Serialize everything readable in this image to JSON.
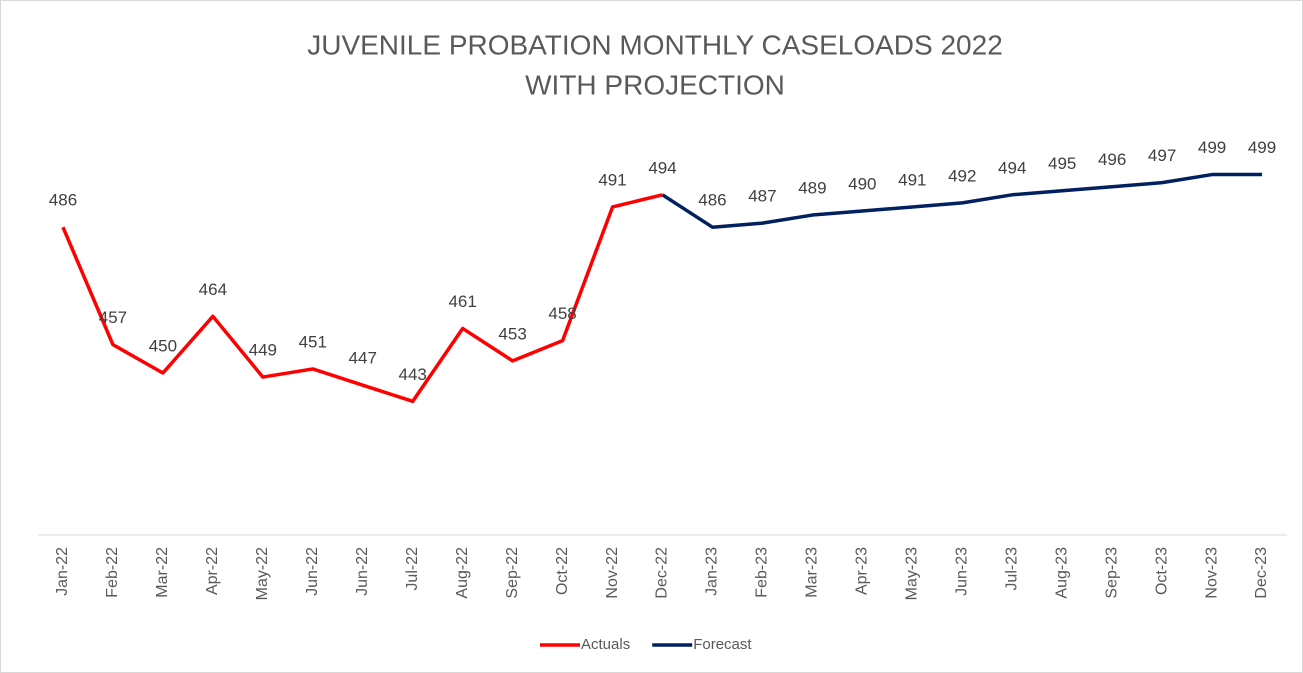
{
  "chart_data": {
    "type": "line",
    "title": [
      "JUVENILE PROBATION MONTHLY CASELOADS 2022",
      "WITH PROJECTION"
    ],
    "categories": [
      "Jan-22",
      "Feb-22",
      "Mar-22",
      "Apr-22",
      "May-22",
      "Jun-22",
      "Jun-22",
      "Jul-22",
      "Aug-22",
      "Sep-22",
      "Oct-22",
      "Nov-22",
      "Dec-22",
      "Jan-23",
      "Feb-23",
      "Mar-23",
      "Apr-23",
      "May-23",
      "Jun-23",
      "Jul-23",
      "Aug-23",
      "Sep-23",
      "Oct-23",
      "Nov-23",
      "Dec-23"
    ],
    "series": [
      {
        "name": "Actuals",
        "color": "#ff0000",
        "values": [
          486,
          457,
          450,
          464,
          449,
          451,
          447,
          443,
          461,
          453,
          458,
          491,
          494,
          null,
          null,
          null,
          null,
          null,
          null,
          null,
          null,
          null,
          null,
          null,
          null
        ]
      },
      {
        "name": "Forecast",
        "color": "#002060",
        "values": [
          null,
          null,
          null,
          null,
          null,
          null,
          null,
          null,
          null,
          null,
          null,
          null,
          494,
          486,
          487,
          489,
          490,
          491,
          492,
          494,
          495,
          496,
          497,
          499,
          499
        ]
      }
    ],
    "ylim": [
      410,
      510
    ],
    "legend": "bottom"
  }
}
